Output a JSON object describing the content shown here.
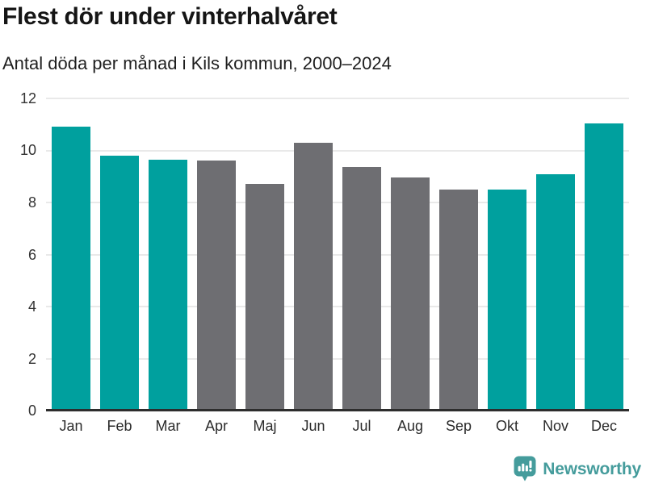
{
  "chart_data": {
    "type": "bar",
    "title": "Flest dör under vinterhalvåret",
    "subtitle": "Antal döda per månad i Kils kommun, 2000–2024",
    "categories": [
      "Jan",
      "Feb",
      "Mar",
      "Apr",
      "Maj",
      "Jun",
      "Jul",
      "Aug",
      "Sep",
      "Okt",
      "Nov",
      "Dec"
    ],
    "values": [
      10.9,
      9.8,
      9.65,
      9.6,
      8.7,
      10.3,
      9.35,
      8.95,
      8.5,
      8.5,
      9.1,
      11.05
    ],
    "bar_colors": [
      "teal",
      "teal",
      "teal",
      "gray",
      "gray",
      "gray",
      "gray",
      "gray",
      "gray",
      "teal",
      "teal",
      "teal"
    ],
    "palette": {
      "teal": "#00a09e",
      "gray": "#6e6e72"
    },
    "xlabel": "",
    "ylabel": "",
    "ylim": [
      0,
      12
    ],
    "yticks": [
      0,
      2,
      4,
      6,
      8,
      10,
      12
    ],
    "grid": "horizontal",
    "legend": "none"
  },
  "style_colors": {
    "gridline": "#e9e9e9",
    "axis_line": "#2d2d2d",
    "brand": "#459c9c"
  },
  "footer": {
    "brand": "Newsworthy",
    "logo_icon": "newsworthy-speech-bubble-barchart-icon"
  }
}
